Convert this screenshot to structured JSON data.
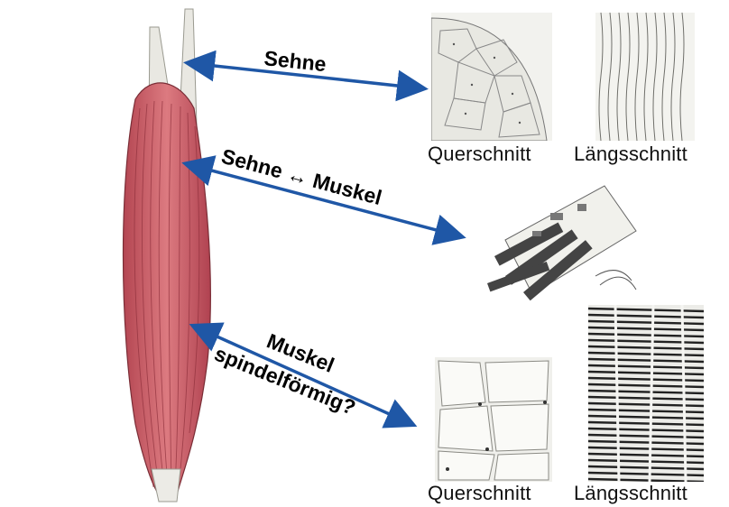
{
  "labels": {
    "tendon": "Sehne",
    "tendon_muscle": "Sehne ↔ Muskel",
    "muscle": "Muskel",
    "spindle_question": "spindelförmig?"
  },
  "captions": {
    "tendon_cross": "Querschnitt",
    "tendon_long": "Längsschnitt",
    "muscle_cross": "Querschnitt",
    "muscle_long": "Längsschnitt"
  },
  "colors": {
    "arrow": "#1f57a6",
    "muscle": "#c95a63",
    "tendon": "#eeeeea"
  }
}
